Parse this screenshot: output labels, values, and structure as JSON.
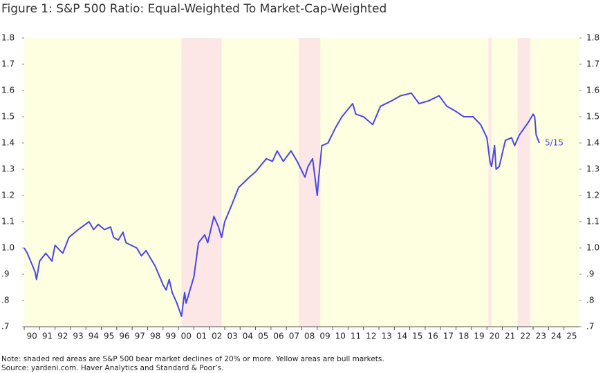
{
  "chart_data": {
    "type": "line",
    "title": "Figure 1: S&P 500 Ratio: Equal-Weighted To Market-Cap-Weighted",
    "notes": [
      "Note: shaded red areas are S&P 500 bear market declines of 20% or more. Yellow areas are bull markets.",
      "Source: yardeni.com. Haver Analytics and Standard & Poor’s."
    ],
    "annotation": "5/15",
    "series": [
      {
        "color": "#4747e6",
        "x": [
          1990.0,
          1990.2,
          1990.7,
          1990.8,
          1991.0,
          1991.4,
          1991.8,
          1992.0,
          1992.5,
          1992.9,
          1993.5,
          1994.2,
          1994.5,
          1994.8,
          1995.2,
          1995.6,
          1995.8,
          1996.1,
          1996.4,
          1996.6,
          1997.3,
          1997.6,
          1997.9,
          1998.2,
          1998.5,
          1999.0,
          1999.2,
          1999.4,
          1999.6,
          1999.9,
          2000.2,
          2000.4,
          2000.5,
          2001.0,
          2001.3,
          2001.7,
          2001.9,
          2002.3,
          2002.6,
          2002.8,
          2003.0,
          2003.5,
          2003.9,
          2004.6,
          2005.0,
          2005.7,
          2006.1,
          2006.4,
          2006.8,
          2007.3,
          2007.7,
          2008.2,
          2008.4,
          2008.7,
          2009.0,
          2009.1,
          2009.3,
          2009.7,
          2010.2,
          2010.6,
          2011.3,
          2011.5,
          2012.0,
          2012.6,
          2013.1,
          2013.8,
          2014.4,
          2015.1,
          2015.6,
          2016.2,
          2016.9,
          2017.4,
          2018.0,
          2018.5,
          2019.1,
          2019.6,
          2020.0,
          2020.2,
          2020.3,
          2020.5,
          2020.6,
          2020.8,
          2021.2,
          2021.6,
          2021.8,
          2022.1,
          2022.7,
          2023.0,
          2023.1,
          2023.2,
          2023.4
        ],
        "values": [
          1.0,
          0.98,
          0.91,
          0.88,
          0.95,
          0.98,
          0.95,
          1.01,
          0.98,
          1.04,
          1.07,
          1.1,
          1.07,
          1.09,
          1.07,
          1.08,
          1.04,
          1.03,
          1.06,
          1.02,
          1.0,
          0.97,
          0.99,
          0.96,
          0.93,
          0.86,
          0.84,
          0.88,
          0.83,
          0.79,
          0.74,
          0.83,
          0.79,
          0.89,
          1.02,
          1.05,
          1.02,
          1.12,
          1.08,
          1.04,
          1.1,
          1.17,
          1.23,
          1.27,
          1.29,
          1.34,
          1.33,
          1.37,
          1.33,
          1.37,
          1.33,
          1.27,
          1.31,
          1.34,
          1.2,
          1.27,
          1.39,
          1.4,
          1.46,
          1.5,
          1.55,
          1.51,
          1.5,
          1.47,
          1.54,
          1.56,
          1.58,
          1.59,
          1.55,
          1.56,
          1.58,
          1.54,
          1.52,
          1.5,
          1.5,
          1.47,
          1.42,
          1.33,
          1.31,
          1.39,
          1.3,
          1.31,
          1.41,
          1.42,
          1.39,
          1.43,
          1.48,
          1.51,
          1.5,
          1.43,
          1.4
        ]
      }
    ],
    "shaded_regions": [
      {
        "start": 2000.2,
        "end": 2002.8
      },
      {
        "start": 2007.8,
        "end": 2009.2
      },
      {
        "start": 2020.1,
        "end": 2020.3
      },
      {
        "start": 2022.0,
        "end": 2022.8
      }
    ],
    "shaded_color": "#fde6e6",
    "xlim": [
      1990,
      2026
    ],
    "xticks": [
      {
        "value": 1990,
        "label": "90"
      },
      {
        "value": 1991,
        "label": "91"
      },
      {
        "value": 1992,
        "label": "92"
      },
      {
        "value": 1993,
        "label": "93"
      },
      {
        "value": 1994,
        "label": "94"
      },
      {
        "value": 1995,
        "label": "95"
      },
      {
        "value": 1996,
        "label": "96"
      },
      {
        "value": 1997,
        "label": "97"
      },
      {
        "value": 1998,
        "label": "98"
      },
      {
        "value": 1999,
        "label": "99"
      },
      {
        "value": 2000,
        "label": "00"
      },
      {
        "value": 2001,
        "label": "01"
      },
      {
        "value": 2002,
        "label": "02"
      },
      {
        "value": 2003,
        "label": "03"
      },
      {
        "value": 2004,
        "label": "04"
      },
      {
        "value": 2005,
        "label": "05"
      },
      {
        "value": 2006,
        "label": "06"
      },
      {
        "value": 2007,
        "label": "07"
      },
      {
        "value": 2008,
        "label": "08"
      },
      {
        "value": 2009,
        "label": "09"
      },
      {
        "value": 2010,
        "label": "10"
      },
      {
        "value": 2011,
        "label": "11"
      },
      {
        "value": 2012,
        "label": "12"
      },
      {
        "value": 2013,
        "label": "13"
      },
      {
        "value": 2014,
        "label": "14"
      },
      {
        "value": 2015,
        "label": "15"
      },
      {
        "value": 2016,
        "label": "16"
      },
      {
        "value": 2017,
        "label": "17"
      },
      {
        "value": 2018,
        "label": "18"
      },
      {
        "value": 2019,
        "label": "19"
      },
      {
        "value": 2020,
        "label": "20"
      },
      {
        "value": 2021,
        "label": "21"
      },
      {
        "value": 2022,
        "label": "22"
      },
      {
        "value": 2023,
        "label": "23"
      },
      {
        "value": 2024,
        "label": "24"
      },
      {
        "value": 2025,
        "label": "25"
      }
    ],
    "ylim": [
      0.7,
      1.8
    ],
    "yticks": [
      1.8,
      1.7,
      1.6,
      1.5,
      1.4,
      1.3,
      1.2,
      1.1,
      {
        "value": 1.0,
        "label": "1.0"
      },
      {
        "value": 0.9,
        "label": ".9"
      },
      {
        "value": 0.8,
        "label": ".8"
      },
      {
        "value": 0.7,
        "label": ".7"
      }
    ],
    "y2lim": [
      0.7,
      1.8
    ],
    "y2ticks": [
      1.8,
      1.7,
      1.6,
      1.5,
      1.4,
      1.3,
      1.2,
      1.1,
      {
        "value": 1.0,
        "label": "1.0"
      },
      {
        "value": 0.9,
        "label": ".9"
      },
      {
        "value": 0.8,
        "label": ".8"
      },
      {
        "value": 0.7,
        "label": ".7"
      }
    ]
  }
}
